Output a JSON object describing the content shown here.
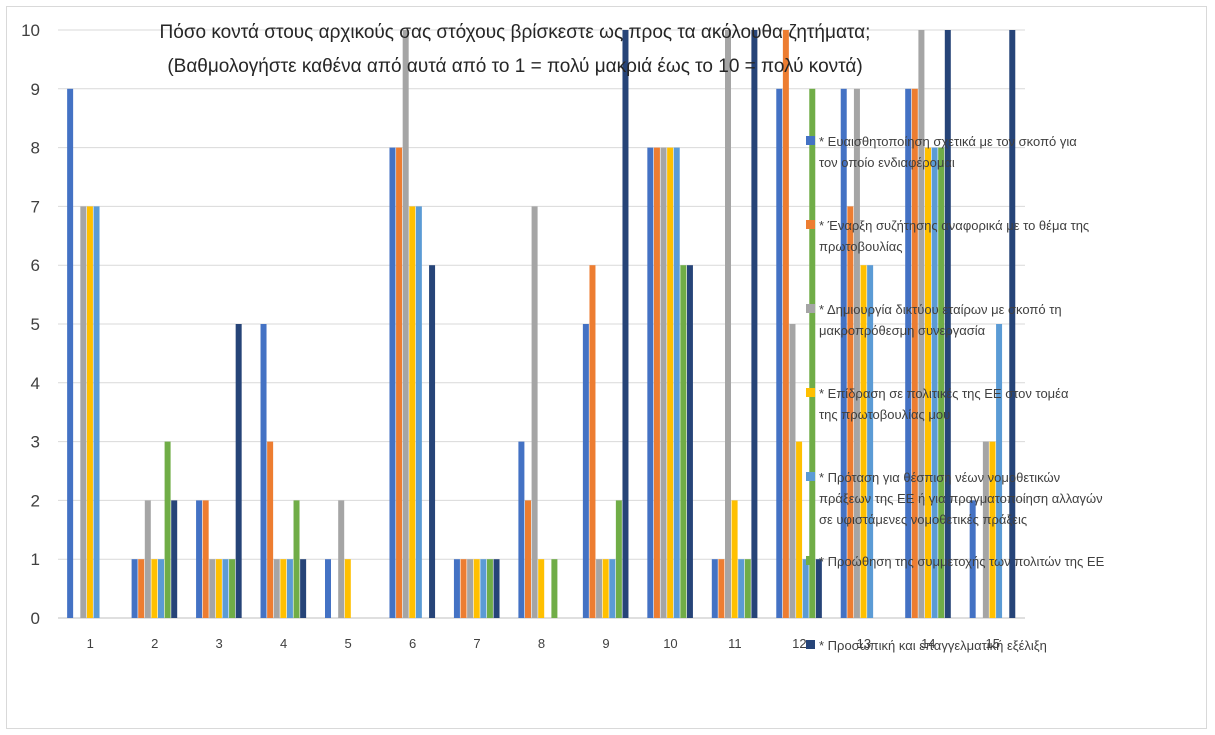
{
  "chart_data": {
    "type": "bar",
    "title_lines": [
      "Πόσο κοντά στους αρχικούς σας στόχους βρίσκεστε ως προς τα ακόλουθα ζητήματα;",
      "(Βαθμολογήστε καθένα από αυτά από το 1 = πολύ μακριά έως το 10 = πολύ κοντά)"
    ],
    "categories": [
      "1",
      "2",
      "3",
      "4",
      "5",
      "6",
      "7",
      "8",
      "9",
      "10",
      "11",
      "12",
      "13",
      "14",
      "15"
    ],
    "ylim": [
      0,
      10
    ],
    "yticks": [
      "0",
      "1",
      "2",
      "3",
      "4",
      "5",
      "6",
      "7",
      "8",
      "9",
      "10"
    ],
    "grid": true,
    "legend_position": "right",
    "series": [
      {
        "name": "* Ευαισθητοποίηση σχετικά με τον σκοπό για τον οποίο ενδιαφέρομαι",
        "color": "#4472C4",
        "values": [
          9,
          1,
          2,
          5,
          1,
          8,
          1,
          3,
          5,
          8,
          1,
          9,
          9,
          9,
          2
        ]
      },
      {
        "name": "* Έναρξη συζήτησης αναφορικά με το θέμα της πρωτοβουλίας",
        "color": "#ED7D31",
        "values": [
          null,
          1,
          2,
          3,
          null,
          8,
          1,
          2,
          6,
          8,
          1,
          10,
          7,
          9,
          null
        ]
      },
      {
        "name": "* Δημιουργία δικτύου εταίρων με σκοπό τη μακροπρόθεσμη συνεργασία",
        "color": "#A5A5A5",
        "values": [
          7,
          2,
          1,
          1,
          2,
          10,
          1,
          7,
          1,
          8,
          10,
          5,
          9,
          10,
          3
        ]
      },
      {
        "name": "* Επίδραση σε πολιτικές της ΕΕ στον τομέα της πρωτοβουλίας μου",
        "color": "#FFC000",
        "values": [
          7,
          1,
          1,
          1,
          1,
          7,
          1,
          1,
          1,
          8,
          2,
          3,
          6,
          8,
          3
        ]
      },
      {
        "name": "* Πρόταση για θέσπιση νέων νομοθετικών πράξεων της ΕΕ ή για πραγματοποίηση αλλαγών σε υφιστάμενες νομοθετικές πράξεις",
        "color": "#5B9BD5",
        "values": [
          7,
          1,
          1,
          1,
          null,
          7,
          1,
          null,
          1,
          8,
          1,
          1,
          6,
          8,
          5
        ]
      },
      {
        "name": "* Προώθηση της συμμετοχής των πολιτών της ΕΕ",
        "color": "#70AD47",
        "values": [
          null,
          3,
          1,
          2,
          null,
          null,
          1,
          1,
          2,
          6,
          1,
          9,
          null,
          8,
          null
        ]
      },
      {
        "name": "* Προσωπική και επαγγελματική εξέλιξη",
        "color": "#264478",
        "values": [
          null,
          2,
          5,
          1,
          null,
          6,
          1,
          null,
          10,
          6,
          10,
          1,
          null,
          10,
          10
        ]
      }
    ]
  }
}
